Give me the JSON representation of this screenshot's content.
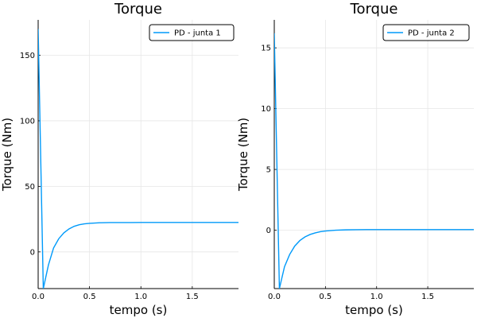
{
  "chart_data": [
    {
      "type": "line",
      "title": "Torque",
      "xlabel": "tempo (s)",
      "ylabel": "Torque (Nm)",
      "xlim": [
        0,
        1.95
      ],
      "ylim": [
        -28,
        177
      ],
      "xticks": [
        0,
        0.5,
        1,
        1.5
      ],
      "xtick_labels": [
        "0.0",
        "0.5",
        "1.0",
        "1.5"
      ],
      "yticks": [
        0,
        50,
        100,
        150
      ],
      "ytick_labels": [
        "0",
        "50",
        "100",
        "150"
      ],
      "grid": true,
      "legend_position": "top-right",
      "color": "#009AFA",
      "series": [
        {
          "name": "PD - junta 1",
          "x": [
            0,
            0.05,
            0.1,
            0.15,
            0.2,
            0.25,
            0.3,
            0.35,
            0.4,
            0.45,
            0.5,
            0.6,
            0.7,
            0.8,
            0.9,
            1.0,
            1.2,
            1.4,
            1.6,
            1.8,
            1.95
          ],
          "y": [
            170,
            -28,
            -10,
            3,
            10,
            14.5,
            17.5,
            19.5,
            20.7,
            21.4,
            21.8,
            22.2,
            22.35,
            22.4,
            22.4,
            22.45,
            22.45,
            22.45,
            22.45,
            22.45,
            22.45
          ]
        }
      ]
    },
    {
      "type": "line",
      "title": "Torque",
      "xlabel": "tempo (s)",
      "ylabel": "Torque (Nm)",
      "xlim": [
        0,
        1.95
      ],
      "ylim": [
        -4.8,
        17.3
      ],
      "xticks": [
        0,
        0.5,
        1,
        1.5
      ],
      "xtick_labels": [
        "0.0",
        "0.5",
        "1.0",
        "1.5"
      ],
      "yticks": [
        0,
        5,
        10,
        15
      ],
      "ytick_labels": [
        "0",
        "5",
        "10",
        "15"
      ],
      "grid": true,
      "legend_position": "top-right",
      "color": "#009AFA",
      "series": [
        {
          "name": "PD - junta 2",
          "x": [
            0,
            0.05,
            0.1,
            0.15,
            0.2,
            0.25,
            0.3,
            0.35,
            0.4,
            0.45,
            0.5,
            0.6,
            0.7,
            0.8,
            0.9,
            1.0,
            1.2,
            1.4,
            1.6,
            1.8,
            1.95
          ],
          "y": [
            16.2,
            -4.8,
            -3.0,
            -2.0,
            -1.3,
            -0.85,
            -0.55,
            -0.35,
            -0.22,
            -0.12,
            -0.06,
            0.0,
            0.03,
            0.04,
            0.05,
            0.05,
            0.05,
            0.05,
            0.05,
            0.05,
            0.05
          ]
        }
      ]
    }
  ]
}
